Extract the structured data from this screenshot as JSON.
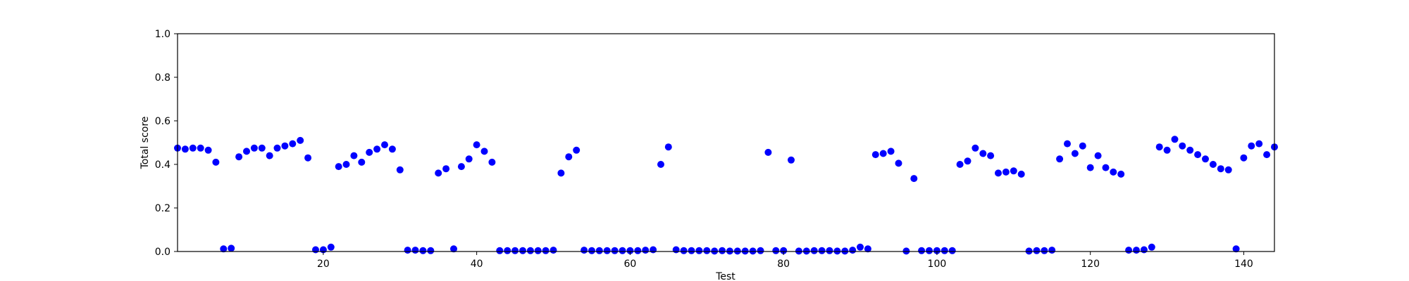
{
  "chart_data": {
    "type": "scatter",
    "title": "",
    "xlabel": "Test",
    "ylabel": "Total score",
    "xlim": [
      1,
      144
    ],
    "ylim": [
      0,
      1.0
    ],
    "xticks": [
      20,
      40,
      60,
      80,
      100,
      120,
      140
    ],
    "yticks": [
      0.0,
      0.2,
      0.4,
      0.6,
      0.8,
      1.0
    ],
    "xtick_labels": [
      "20",
      "40",
      "60",
      "80",
      "100",
      "120",
      "140"
    ],
    "ytick_labels": [
      "0.0",
      "0.2",
      "0.4",
      "0.6",
      "0.8",
      "1.0"
    ],
    "grid": false,
    "marker_color": "#0000ff",
    "series": [
      {
        "x": [
          1,
          2,
          3,
          4,
          5,
          6,
          7,
          8,
          9,
          10,
          11,
          12,
          13,
          14,
          15,
          16,
          17,
          18,
          19,
          20,
          21,
          22,
          23,
          24,
          25,
          26,
          27,
          28,
          29,
          30,
          31,
          32,
          33,
          34,
          35,
          36,
          37,
          38,
          39,
          40,
          41,
          42,
          43,
          44,
          45,
          46,
          47,
          48,
          49,
          50,
          51,
          52,
          53,
          54,
          55,
          56,
          57,
          58,
          59,
          60,
          61,
          62,
          63,
          64,
          65,
          66,
          67,
          68,
          69,
          70,
          71,
          72,
          73,
          74,
          75,
          76,
          77,
          78,
          79,
          80,
          81,
          82,
          83,
          84,
          85,
          86,
          87,
          88,
          89,
          90,
          91,
          92,
          93,
          94,
          95,
          96,
          97,
          98,
          99,
          100,
          101,
          102,
          103,
          104,
          105,
          106,
          107,
          108,
          109,
          110,
          111,
          112,
          113,
          114,
          115,
          116,
          117,
          118,
          119,
          120,
          121,
          122,
          123,
          124,
          125,
          126,
          127,
          128,
          129,
          130,
          131,
          132,
          133,
          134,
          135,
          136,
          137,
          138,
          139,
          140,
          141,
          142,
          143,
          144
        ],
        "y": [
          0.475,
          0.47,
          0.475,
          0.475,
          0.465,
          0.41,
          0.012,
          0.015,
          0.435,
          0.46,
          0.475,
          0.475,
          0.44,
          0.475,
          0.485,
          0.495,
          0.51,
          0.43,
          0.008,
          0.008,
          0.02,
          0.39,
          0.4,
          0.44,
          0.41,
          0.455,
          0.47,
          0.49,
          0.47,
          0.375,
          0.006,
          0.006,
          0.004,
          0.004,
          0.36,
          0.38,
          0.012,
          0.39,
          0.425,
          0.49,
          0.46,
          0.41,
          0.004,
          0.004,
          0.004,
          0.004,
          0.004,
          0.004,
          0.004,
          0.006,
          0.36,
          0.435,
          0.465,
          0.006,
          0.004,
          0.004,
          0.004,
          0.004,
          0.004,
          0.004,
          0.004,
          0.006,
          0.008,
          0.4,
          0.48,
          0.008,
          0.004,
          0.004,
          0.004,
          0.004,
          0.002,
          0.004,
          0.002,
          0.002,
          0.002,
          0.002,
          0.004,
          0.455,
          0.004,
          0.004,
          0.42,
          0.002,
          0.002,
          0.004,
          0.004,
          0.004,
          0.002,
          0.002,
          0.006,
          0.02,
          0.012,
          0.445,
          0.45,
          0.46,
          0.405,
          0.002,
          0.335,
          0.004,
          0.004,
          0.004,
          0.004,
          0.004,
          0.4,
          0.415,
          0.475,
          0.45,
          0.44,
          0.36,
          0.365,
          0.37,
          0.355,
          0.002,
          0.004,
          0.004,
          0.006,
          0.425,
          0.495,
          0.45,
          0.485,
          0.385,
          0.44,
          0.385,
          0.365,
          0.355,
          0.006,
          0.006,
          0.008,
          0.02,
          0.48,
          0.465,
          0.515,
          0.485,
          0.465,
          0.445,
          0.425,
          0.4,
          0.38,
          0.375,
          0.012,
          0.43,
          0.485,
          0.495,
          0.445,
          0.48
        ]
      }
    ]
  }
}
